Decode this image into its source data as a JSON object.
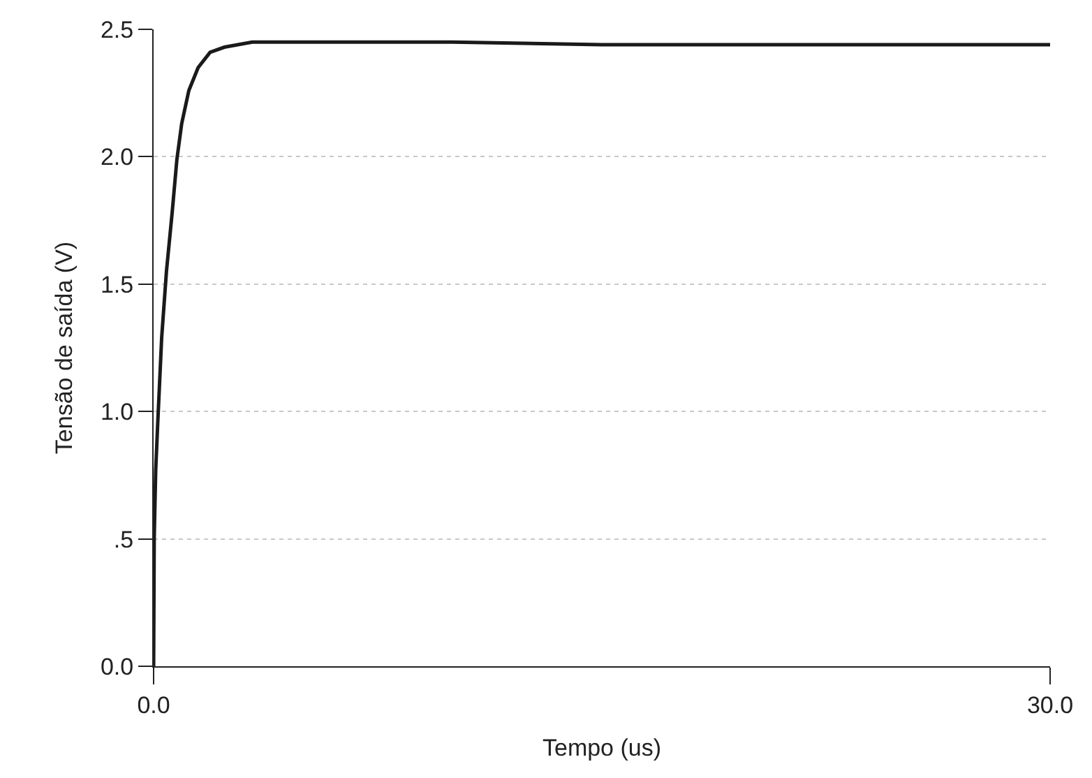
{
  "chart_data": {
    "type": "line",
    "xlabel": "Tempo (us)",
    "ylabel": "Tensão de saída (V)",
    "x": [
      0,
      0.02,
      0.07,
      0.14,
      0.27,
      0.43,
      0.62,
      0.78,
      0.94,
      1.18,
      1.49,
      1.89,
      2.37,
      3.3,
      6,
      10,
      15,
      20,
      25,
      30
    ],
    "series": [
      {
        "color": "#1a1a1a",
        "values": [
          0,
          0.5,
          0.77,
          0.96,
          1.29,
          1.55,
          1.78,
          1.99,
          2.13,
          2.26,
          2.35,
          2.41,
          2.43,
          2.45,
          2.45,
          2.45,
          2.44,
          2.44,
          2.44,
          2.44
        ]
      }
    ],
    "xlim": [
      0,
      30
    ],
    "xticks": [
      {
        "value": 0,
        "label": "0.0"
      },
      {
        "value": 30,
        "label": "30.0"
      }
    ],
    "ylim": [
      0,
      2.5
    ],
    "yticks": [
      {
        "value": 0,
        "label": "0.0"
      },
      {
        "value": 0.5,
        "label": ".5"
      },
      {
        "value": 1,
        "label": "1.0"
      },
      {
        "value": 1.5,
        "label": "1.5"
      },
      {
        "value": 2,
        "label": "2.0"
      },
      {
        "value": 2.5,
        "label": "2.5"
      }
    ],
    "grid": true,
    "marker": "none",
    "line_style": "solid"
  }
}
